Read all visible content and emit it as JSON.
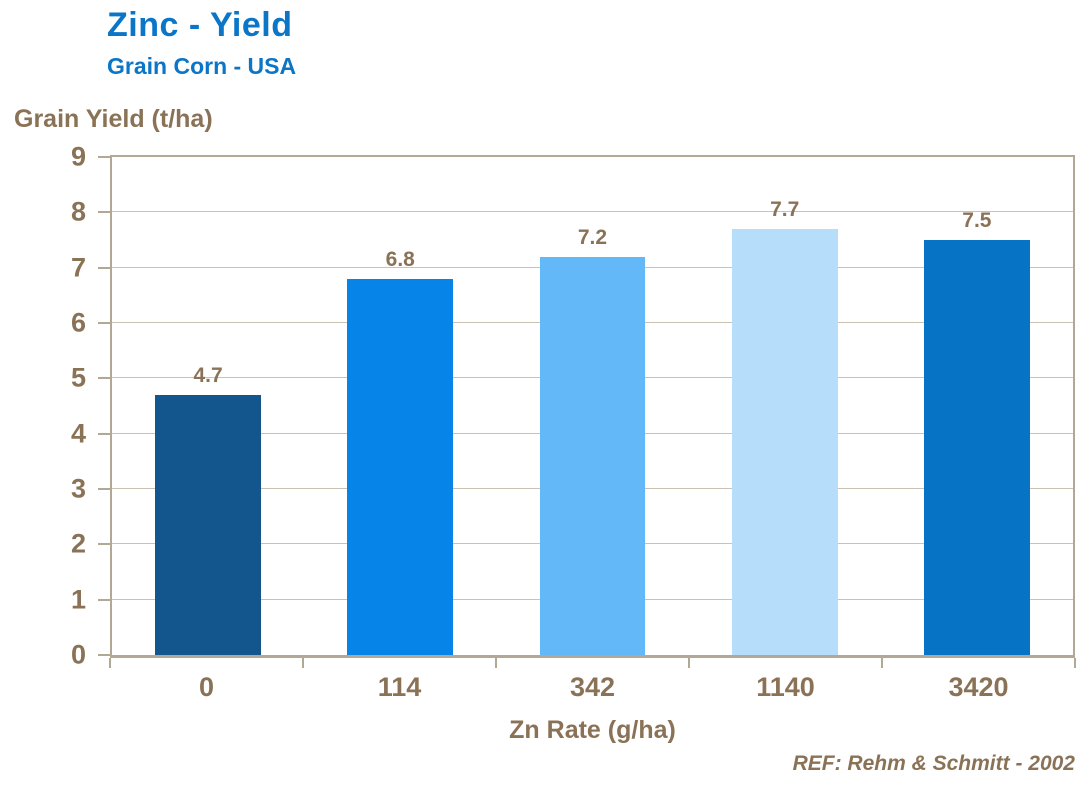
{
  "header": {
    "title": "Zinc - Yield",
    "subtitle": "Grain Corn - USA"
  },
  "chart_data": {
    "type": "bar",
    "title": "Zinc - Yield",
    "subtitle": "Grain Corn - USA",
    "categories": [
      "0",
      "114",
      "342",
      "1140",
      "3420"
    ],
    "values": [
      4.7,
      6.8,
      7.2,
      7.7,
      7.5
    ],
    "data_labels": [
      "4.7",
      "6.8",
      "7.2",
      "7.7",
      "7.5"
    ],
    "bar_colors": [
      "#13568D",
      "#0784E8",
      "#63B9F7",
      "#B6DDFA",
      "#0773C5"
    ],
    "xlabel": "Zn Rate (g/ha)",
    "ylabel": "Grain Yield (t/ha)",
    "ylim": [
      0,
      9
    ],
    "yticks": [
      0,
      1,
      2,
      3,
      4,
      5,
      6,
      7,
      8,
      9
    ],
    "grid": true,
    "legend_position": "none"
  },
  "footer": {
    "reference": "REF: Rehm & Schmitt - 2002"
  },
  "colors": {
    "title_text": "#0B76C8",
    "axis_text": "#8A7256",
    "grid_line": "#CCC2B4",
    "axis_line": "#B3A795",
    "background": "#FFFFFF"
  }
}
